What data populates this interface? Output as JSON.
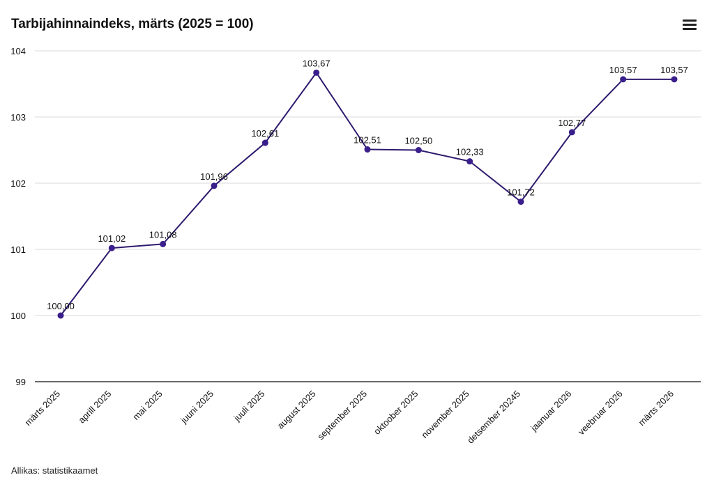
{
  "header": {
    "title": "Tarbijahinnaindeks, märts (2025 = 100)",
    "menu_icon": "hamburger-menu-icon"
  },
  "footer": {
    "source": "Allikas: statistikaamet"
  },
  "colors": {
    "line": "#2e1a6e",
    "point": "#3a1f8c",
    "grid": "#d9d9d9",
    "axis": "#111111"
  },
  "chart_data": {
    "type": "line",
    "title": "Tarbijahinnaindeks, märts (2025 = 100)",
    "xlabel": "",
    "ylabel": "",
    "ylim": [
      99,
      104
    ],
    "yticks": [
      "99",
      "100",
      "101",
      "102",
      "103",
      "104"
    ],
    "grid": true,
    "legend": "none",
    "categories": [
      "märts 2025",
      "aprill 2025",
      "mai 2025",
      "juuni 2025",
      "juuli 2025",
      "august 2025",
      "september 2025",
      "oktoober 2025",
      "november 2025",
      "detsember 20245",
      "jaanuar 2026",
      "veebruar 2026",
      "märts 2026"
    ],
    "values": [
      100.0,
      101.02,
      101.08,
      101.96,
      102.61,
      103.67,
      102.51,
      102.5,
      102.33,
      101.72,
      102.77,
      103.57,
      103.57
    ],
    "data_labels": [
      "100,00",
      "101,02",
      "101,08",
      "101,96",
      "102,61",
      "103,67",
      "102,51",
      "102,50",
      "102,33",
      "101,72",
      "102,77",
      "103,57",
      "103,57"
    ]
  }
}
